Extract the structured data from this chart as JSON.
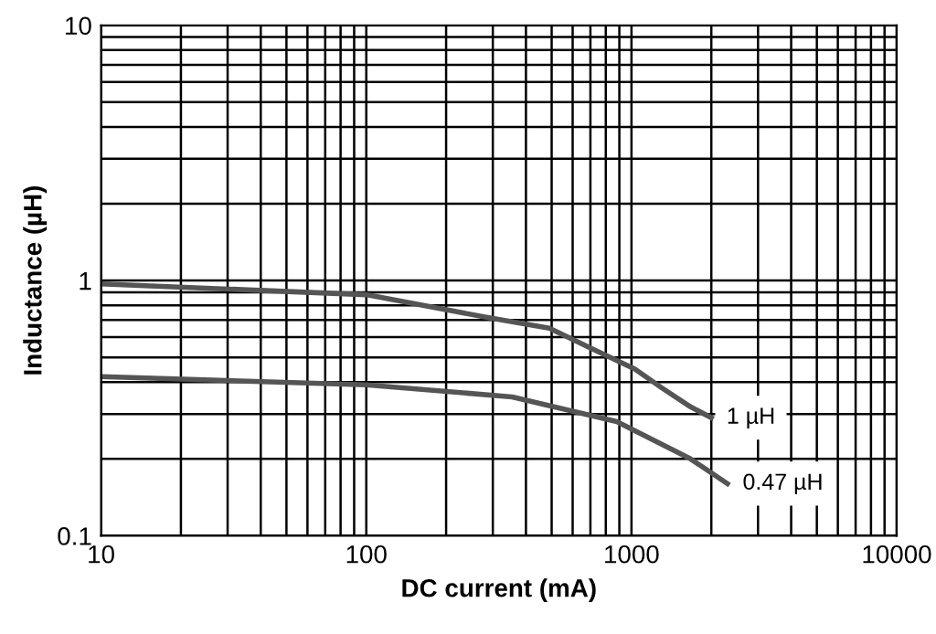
{
  "chart_data": {
    "type": "line",
    "xlabel": "DC current (mA)",
    "ylabel": "Inductance (µH)",
    "log": "xy",
    "xlim": [
      10,
      10000
    ],
    "ylim": [
      0.1,
      10
    ],
    "xticks": [
      10,
      100,
      1000,
      10000
    ],
    "yticks": [
      0.1,
      1,
      10
    ],
    "grid": true,
    "line_style": "solid",
    "marker": "none",
    "series": [
      {
        "name": "1 µH",
        "color": "#555555",
        "x": [
          10,
          100,
          280,
          490,
          710,
          1030,
          1300,
          1670,
          2000
        ],
        "values": [
          0.97,
          0.88,
          0.72,
          0.65,
          0.54,
          0.45,
          0.38,
          0.32,
          0.29
        ]
      },
      {
        "name": "0.47 µH",
        "color": "#555555",
        "x": [
          10,
          100,
          355,
          880,
          1670,
          2300
        ],
        "values": [
          0.42,
          0.39,
          0.35,
          0.28,
          0.2,
          0.16
        ]
      }
    ]
  }
}
